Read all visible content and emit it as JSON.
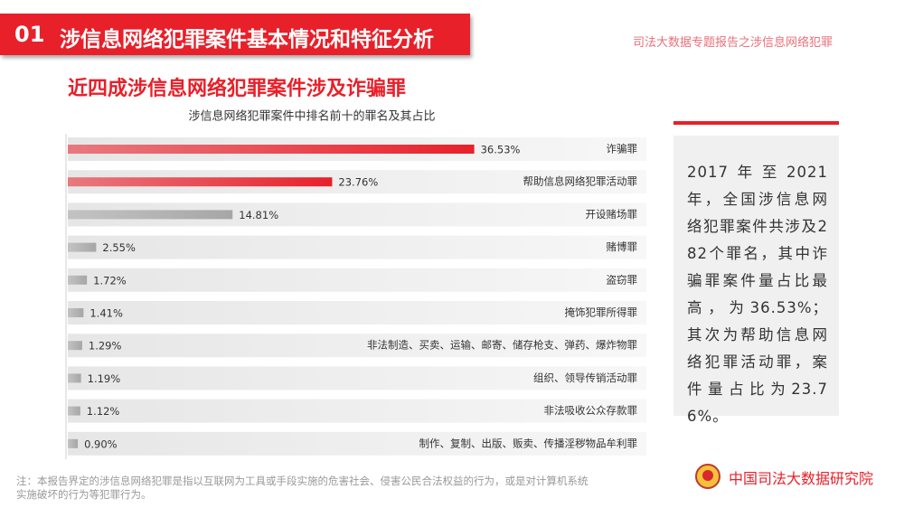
{
  "header": {
    "number": "01",
    "title": "涉信息网络犯罪案件基本情况和特征分析",
    "report_name": "司法大数据专题报告之涉信息网络犯罪"
  },
  "subtitle": "近四成涉信息网络犯罪案件涉及诈骗罪",
  "chart_data": {
    "type": "bar",
    "orientation": "horizontal",
    "title": "涉信息网络犯罪案件中排名前十的罪名及其占比",
    "categories": [
      "诈骗罪",
      "帮助信息网络犯罪活动罪",
      "开设赌场罪",
      "赌博罪",
      "盗窃罪",
      "掩饰犯罪所得罪",
      "非法制造、买卖、运输、邮寄、储存枪支、弹药、爆炸物罪",
      "组织、领导传销活动罪",
      "非法吸收公众存款罪",
      "制作、复制、出版、贩卖、传播淫秽物品牟利罪"
    ],
    "values": [
      36.53,
      23.76,
      14.81,
      2.55,
      1.72,
      1.41,
      1.29,
      1.19,
      1.12,
      0.9
    ],
    "value_labels": [
      "36.53%",
      "23.76%",
      "14.81%",
      "2.55%",
      "1.72%",
      "1.41%",
      "1.29%",
      "1.19%",
      "1.12%",
      "0.90%"
    ],
    "colors": [
      "#e8202a",
      "#e8202a",
      "#a6a6a6",
      "#a6a6a6",
      "#a6a6a6",
      "#a6a6a6",
      "#a6a6a6",
      "#a6a6a6",
      "#a6a6a6",
      "#a6a6a6"
    ],
    "xlim": [
      0,
      52
    ]
  },
  "summary": "2017年至2021年，全国涉信息网络犯罪案件共涉及282个罪名，其中诈骗罪案件量占比最高，为36.53%；其次为帮助信息网络犯罪活动罪，案件量占比为23.76%。",
  "footnote": "注：本报告界定的涉信息网络犯罪是指以互联网为工具或手段实施的危害社会、侵害公民合法权益的行为，或是对计算机系统实施破坏的行为等犯罪行为。",
  "organization": "中国司法大数据研究院"
}
